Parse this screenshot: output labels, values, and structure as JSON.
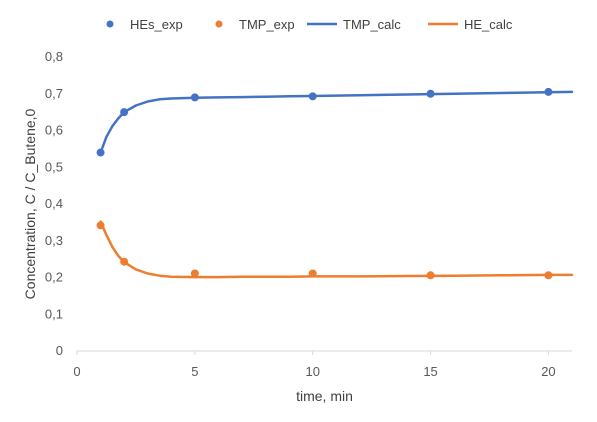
{
  "chart_data": {
    "type": "scatter",
    "title": "",
    "xlabel": "time, min",
    "ylabel": "Concentration, C / C_Butene,0",
    "xlim": [
      0,
      21
    ],
    "ylim": [
      0,
      0.8
    ],
    "xticks": [
      0,
      5,
      10,
      15,
      20
    ],
    "xtick_labels": [
      "0",
      "5",
      "10",
      "15",
      "20"
    ],
    "yticks": [
      0,
      0.1,
      0.2,
      0.3,
      0.4,
      0.5,
      0.6,
      0.7,
      0.8
    ],
    "ytick_labels": [
      "0",
      "0,1",
      "0,2",
      "0,3",
      "0,4",
      "0,5",
      "0,6",
      "0,7",
      "0,8"
    ],
    "grid": false,
    "legend_position": "top",
    "series": [
      {
        "name": "HEs_exp",
        "kind": "markers",
        "color": "#4472C4",
        "x": [
          1,
          2,
          5,
          10,
          15,
          20
        ],
        "y": [
          0.54,
          0.65,
          0.69,
          0.693,
          0.7,
          0.705
        ]
      },
      {
        "name": "TMP_exp",
        "kind": "markers",
        "color": "#ED7D31",
        "x": [
          1,
          2,
          5,
          10,
          15,
          20
        ],
        "y": [
          0.342,
          0.243,
          0.211,
          0.211,
          0.206,
          0.206
        ]
      },
      {
        "name": "TMP_calc",
        "kind": "line",
        "color": "#4472C4",
        "x": [
          1,
          1.25,
          1.5,
          1.75,
          2,
          2.5,
          3,
          3.5,
          4,
          5,
          6,
          7,
          8,
          9,
          10,
          12,
          14,
          16,
          18,
          20,
          21
        ],
        "y": [
          0.54,
          0.583,
          0.612,
          0.633,
          0.65,
          0.668,
          0.679,
          0.685,
          0.687,
          0.689,
          0.69,
          0.691,
          0.692,
          0.693,
          0.694,
          0.696,
          0.698,
          0.7,
          0.702,
          0.704,
          0.705
        ]
      },
      {
        "name": "HE_calc",
        "kind": "line",
        "color": "#ED7D31",
        "x": [
          1,
          1.25,
          1.5,
          1.75,
          2,
          2.5,
          3,
          3.5,
          4,
          5,
          6,
          7,
          8,
          9,
          10,
          12,
          14,
          16,
          18,
          20,
          21
        ],
        "y": [
          0.352,
          0.315,
          0.283,
          0.259,
          0.242,
          0.222,
          0.211,
          0.205,
          0.202,
          0.201,
          0.201,
          0.202,
          0.202,
          0.202,
          0.203,
          0.203,
          0.204,
          0.205,
          0.206,
          0.207,
          0.207
        ]
      }
    ]
  }
}
